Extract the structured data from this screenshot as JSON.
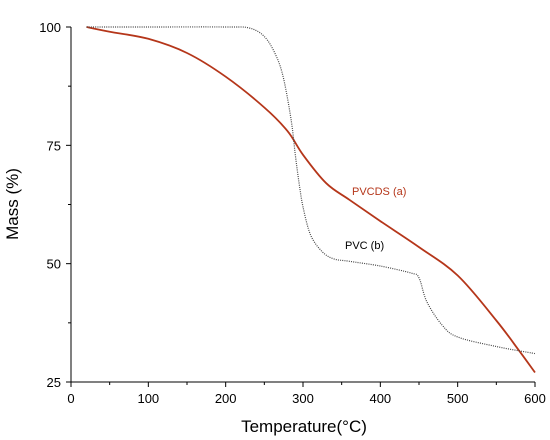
{
  "chart_data": {
    "type": "line",
    "title": "",
    "xlabel": "Temperature(°C)",
    "ylabel": "Mass (%)",
    "xlim": [
      0,
      600
    ],
    "ylim": [
      25,
      100
    ],
    "x_ticks": [
      "0",
      "100",
      "200",
      "300",
      "400",
      "500",
      "600"
    ],
    "y_ticks": [
      "25",
      "50",
      "75",
      "100"
    ],
    "grid": false,
    "legend": "none",
    "series": [
      {
        "name": "PVCDS (a)",
        "color": "#b5361a",
        "style": "solid",
        "x": [
          20,
          50,
          100,
          150,
          200,
          250,
          280,
          300,
          330,
          360,
          400,
          450,
          500,
          550,
          580,
          600
        ],
        "y": [
          100,
          99,
          97.5,
          94.5,
          89.5,
          83,
          78,
          73,
          67,
          63.5,
          59,
          53.5,
          47.5,
          38,
          31.5,
          27
        ]
      },
      {
        "name": "PVC (b)",
        "color": "#444444",
        "style": "dotted",
        "x": [
          20,
          100,
          200,
          230,
          250,
          265,
          275,
          285,
          290,
          295,
          300,
          310,
          325,
          340,
          360,
          400,
          440,
          450,
          460,
          480,
          500,
          550,
          600
        ],
        "y": [
          100,
          100,
          100,
          99.8,
          98,
          94,
          89,
          80,
          73,
          67,
          62,
          56,
          52.5,
          51,
          50.5,
          49.5,
          48,
          47,
          42,
          37,
          34.5,
          32.5,
          31
        ]
      }
    ]
  }
}
